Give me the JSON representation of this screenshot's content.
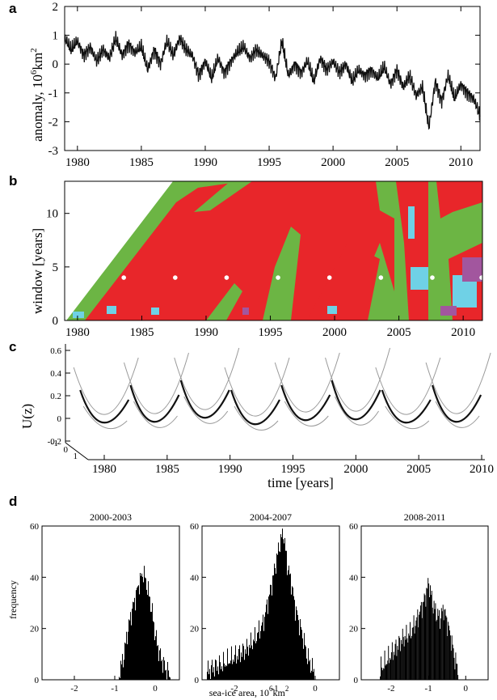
{
  "panel_labels": [
    "a",
    "b",
    "c",
    "d"
  ],
  "chart_data": [
    {
      "panel": "a",
      "type": "line",
      "xlabel": "",
      "ylabel": "anomaly, 10",
      "ylabel_sup": "6",
      "ylabel_unit": "km",
      "ylabel_unit_sup": "2",
      "xlim": [
        1979,
        2011.5
      ],
      "ylim": [
        -3,
        2
      ],
      "xticks": [
        "1980",
        "1985",
        "1990",
        "1995",
        "2000",
        "2005",
        "2010"
      ],
      "yticks": [
        "2",
        "1",
        "0",
        "-1",
        "-2",
        "-3"
      ],
      "series": [
        {
          "x": [
            1979.0,
            1979.5,
            1980.0,
            1980.5,
            1981.0,
            1981.5,
            1982.0,
            1982.5,
            1983.0,
            1983.5,
            1984.0,
            1984.5,
            1985.0,
            1985.5,
            1986.0,
            1986.5,
            1987.0,
            1987.5,
            1988.0,
            1988.5,
            1989.0,
            1989.5,
            1990.0,
            1990.5,
            1991.0,
            1991.5,
            1992.0,
            1992.5,
            1993.0,
            1993.5,
            1994.0,
            1994.5,
            1995.0,
            1995.5,
            1996.0,
            1996.5,
            1997.0,
            1997.5,
            1998.0,
            1998.5,
            1999.0,
            1999.5,
            2000.0,
            2000.5,
            2001.0,
            2001.5,
            2002.0,
            2002.5,
            2003.0,
            2003.5,
            2004.0,
            2004.5,
            2005.0,
            2005.5,
            2006.0,
            2006.5,
            2007.0,
            2007.5,
            2008.0,
            2008.5,
            2009.0,
            2009.5,
            2010.0,
            2010.5,
            2011.0,
            2011.5
          ],
          "y": [
            0.9,
            0.5,
            0.8,
            0.3,
            0.6,
            0.1,
            0.5,
            0.2,
            0.9,
            0.3,
            0.7,
            0.4,
            0.6,
            -0.2,
            0.5,
            0.0,
            0.8,
            0.3,
            0.9,
            0.5,
            0.3,
            -0.4,
            0.1,
            -0.5,
            0.2,
            -0.3,
            0.1,
            0.4,
            0.6,
            0.2,
            0.5,
            0.3,
            0.1,
            -0.5,
            0.8,
            -0.4,
            0.0,
            -0.3,
            0.1,
            -0.6,
            0.2,
            -0.2,
            0.1,
            -0.3,
            0.0,
            -0.6,
            -0.2,
            -0.4,
            -0.2,
            -0.5,
            -0.1,
            -0.7,
            -0.2,
            -0.8,
            -0.4,
            -1.1,
            -0.8,
            -2.2,
            -0.6,
            -1.3,
            -0.4,
            -1.2,
            -0.7,
            -1.0,
            -1.2,
            -1.8
          ]
        }
      ]
    },
    {
      "panel": "b",
      "type": "heatmap",
      "xlabel": "",
      "ylabel": "window [years]",
      "xlim": [
        1979,
        2011.5
      ],
      "ylim": [
        0,
        13
      ],
      "xticks": [
        "1980",
        "1985",
        "1990",
        "1995",
        "2000",
        "2005",
        "2010"
      ],
      "yticks": [
        "10",
        "5",
        "0"
      ],
      "colors": {
        "red": "#e8262a",
        "green": "#6cb544",
        "cyan": "#6fd1e6",
        "purple": "#a2569e"
      },
      "markers": {
        "window": 4,
        "x": [
          1983.6,
          1987.6,
          1991.6,
          1995.6,
          1999.6,
          2003.6,
          2007.6,
          2011.5
        ]
      }
    },
    {
      "panel": "c",
      "type": "line",
      "xlabel": "time [years]",
      "ylabel": "U(z)",
      "xticks": [
        "1980",
        "1985",
        "1990",
        "1995",
        "2000",
        "2005",
        "2010"
      ],
      "zticks": [
        "0.6",
        "0.4",
        "0.2",
        "0",
        "-0.2"
      ],
      "depth_ticks": [
        "-1",
        "0",
        "1"
      ],
      "potential_windows": [
        1979.5,
        1983.5,
        1987.5,
        1991.5,
        1995.5,
        1999.5,
        2003.5,
        2007.5
      ]
    },
    {
      "panel": "d",
      "type": "bar",
      "xlabel": "sea-ice area, 10",
      "xlabel_sup": "6",
      "xlabel_unit": "km",
      "xlabel_unit_sup": "2",
      "ylabel": "frequency",
      "xlim": [
        -2.8,
        0.6
      ],
      "ylim": [
        0,
        60
      ],
      "xticks": [
        "-2",
        "-1",
        "0"
      ],
      "yticks": [
        "60",
        "40",
        "20",
        "0"
      ],
      "histograms": [
        {
          "title": "2000-2003",
          "bin_width": 0.02,
          "centers": [
            -0.9,
            -0.8,
            -0.7,
            -0.6,
            -0.5,
            -0.4,
            -0.3,
            -0.2,
            -0.1,
            0.0,
            0.1,
            0.2,
            0.3,
            0.4
          ],
          "counts": [
            3,
            8,
            18,
            26,
            32,
            38,
            42,
            36,
            28,
            17,
            10,
            6,
            3,
            1
          ]
        },
        {
          "title": "2004-2007",
          "bin_width": 0.02,
          "centers": [
            -2.7,
            -2.5,
            -2.3,
            -2.1,
            -1.9,
            -1.7,
            -1.5,
            -1.3,
            -1.1,
            -1.0,
            -0.9,
            -0.8,
            -0.7,
            -0.6,
            -0.5,
            -0.4,
            -0.3,
            -0.2,
            -0.1,
            0.0
          ],
          "counts": [
            3,
            5,
            6,
            8,
            10,
            12,
            16,
            22,
            36,
            44,
            52,
            58,
            45,
            38,
            28,
            22,
            16,
            9,
            5,
            2
          ]
        },
        {
          "title": "2008-2011",
          "bin_width": 0.02,
          "centers": [
            -2.3,
            -2.1,
            -1.9,
            -1.7,
            -1.5,
            -1.3,
            -1.1,
            -1.0,
            -0.9,
            -0.8,
            -0.7,
            -0.6,
            -0.5,
            -0.4,
            -0.3,
            -0.2
          ],
          "counts": [
            4,
            8,
            12,
            16,
            18,
            24,
            32,
            38,
            30,
            26,
            24,
            28,
            22,
            16,
            8,
            3
          ]
        }
      ]
    }
  ]
}
